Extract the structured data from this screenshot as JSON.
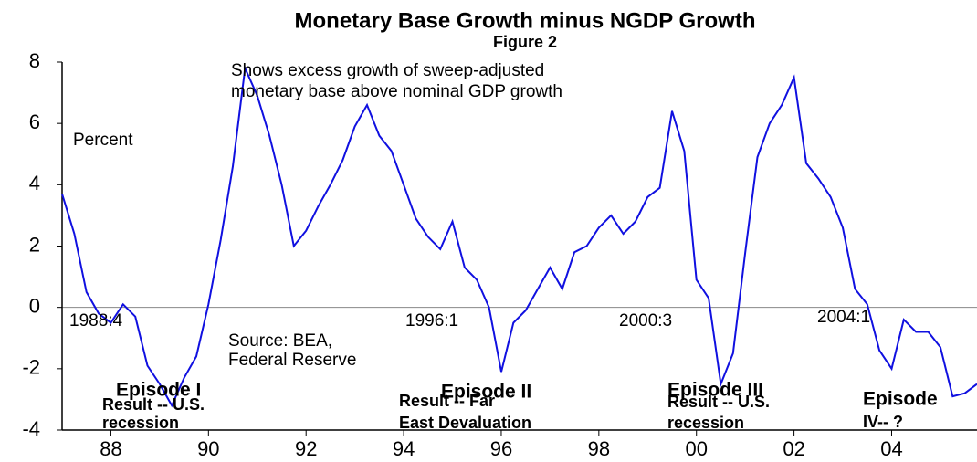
{
  "chart_data": {
    "type": "line",
    "title": "Monetary Base Growth minus NGDP Growth",
    "subtitle": "Figure 2",
    "y_label": "Percent",
    "annotations": [
      "Shows excess growth of sweep-adjusted",
      "monetary base above nominal GDP growth",
      "Source: BEA,",
      "Federal Reserve",
      "1988:4",
      "1996:1",
      "2000:3",
      "2004:1",
      "Episode I",
      "Result -- U.S.",
      "recession",
      "Episode II",
      "Result -- Far",
      "East Devaluation",
      "Episode III",
      "Result -- U.S.",
      "recession",
      "Episode",
      "IV-- ?"
    ],
    "x": [
      1987,
      1987.25,
      1987.5,
      1987.75,
      1988,
      1988.25,
      1988.5,
      1988.75,
      1989,
      1989.25,
      1989.5,
      1989.75,
      1990,
      1990.25,
      1990.5,
      1990.75,
      1991,
      1991.25,
      1991.5,
      1991.75,
      1992,
      1992.25,
      1992.5,
      1992.75,
      1993,
      1993.25,
      1993.5,
      1993.75,
      1994,
      1994.25,
      1994.5,
      1994.75,
      1995,
      1995.25,
      1995.5,
      1995.75,
      1996,
      1996.25,
      1996.5,
      1996.75,
      1997,
      1997.25,
      1997.5,
      1997.75,
      1998,
      1998.25,
      1998.5,
      1998.75,
      1999,
      1999.25,
      1999.5,
      1999.75,
      2000,
      2000.25,
      2000.5,
      2000.75,
      2001,
      2001.25,
      2001.5,
      2001.75,
      2002,
      2002.25,
      2002.5,
      2002.75,
      2003,
      2003.25,
      2003.5,
      2003.75,
      2004,
      2004.25,
      2004.5,
      2004.75,
      2005,
      2005.25,
      2005.5,
      2005.75
    ],
    "series": [
      {
        "color": "#1010e0",
        "values": [
          3.7,
          2.4,
          0.5,
          -0.2,
          -0.5,
          0.1,
          -0.3,
          -1.9,
          -2.5,
          -3.2,
          -2.3,
          -1.6,
          0.1,
          2.2,
          4.6,
          7.8,
          6.9,
          5.6,
          4.0,
          2.0,
          2.5,
          3.3,
          4.0,
          4.8,
          5.9,
          6.6,
          5.6,
          5.1,
          4.0,
          2.9,
          2.3,
          1.9,
          2.8,
          1.3,
          0.9,
          0.0,
          -2.1,
          -0.5,
          -0.1,
          0.6,
          1.3,
          0.6,
          1.8,
          2.0,
          2.6,
          3.0,
          2.4,
          2.8,
          3.6,
          3.9,
          6.4,
          5.1,
          0.9,
          0.3,
          -2.5,
          -1.5,
          1.8,
          4.9,
          6.0,
          6.6,
          7.5,
          4.7,
          4.2,
          3.6,
          2.6,
          0.6,
          0.1,
          -1.4,
          -2.0,
          -0.4,
          -0.8,
          -0.8,
          -1.3,
          -2.9,
          -2.8,
          -2.5
        ]
      }
    ],
    "xlim": [
      1987,
      2005.75
    ],
    "xticks": [
      {
        "value": 1988,
        "label": "88"
      },
      {
        "value": 1990,
        "label": "90"
      },
      {
        "value": 1992,
        "label": "92"
      },
      {
        "value": 1994,
        "label": "94"
      },
      {
        "value": 1996,
        "label": "96"
      },
      {
        "value": 1998,
        "label": "98"
      },
      {
        "value": 2000,
        "label": "00"
      },
      {
        "value": 2002,
        "label": "02"
      },
      {
        "value": 2004,
        "label": "04"
      }
    ],
    "ylim": [
      -4,
      8
    ],
    "yticks": [
      -4,
      -2,
      0,
      2,
      4,
      6,
      8
    ]
  }
}
